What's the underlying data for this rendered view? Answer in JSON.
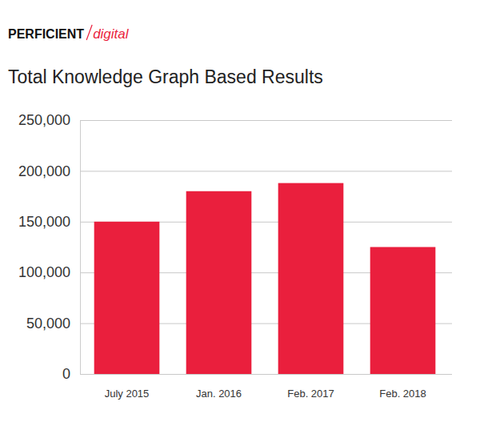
{
  "chart_data": {
    "type": "bar",
    "title": "Total Knowledge Graph Based Results",
    "annotations": [
      "PERFICIENT",
      "digital"
    ],
    "categories": [
      "July 2015",
      "Jan. 2016",
      "Feb. 2017",
      "Feb. 2018"
    ],
    "values": [
      150000,
      180000,
      188000,
      125000
    ],
    "color": "#ea1f3d",
    "ylim": [
      0,
      250000
    ],
    "yticks": [
      0,
      {
        "value": 50000,
        "label": "50,000"
      },
      {
        "value": 100000,
        "label": "100,000"
      },
      {
        "value": 150000,
        "label": "150,000"
      },
      {
        "value": 200000,
        "label": "200,000"
      },
      {
        "value": 250000,
        "label": "250,000"
      }
    ],
    "grid": true
  }
}
